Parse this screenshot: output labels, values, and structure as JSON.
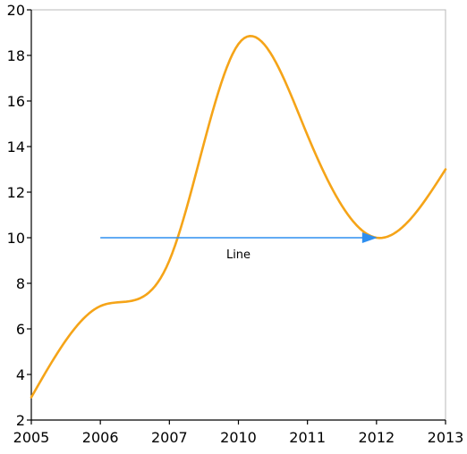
{
  "chart_data": {
    "type": "line",
    "x": [
      "2005",
      "2006",
      "2007",
      "2010",
      "2011",
      "2012",
      "2013"
    ],
    "series": [
      {
        "values": [
          3,
          7,
          9,
          18.5,
          14.5,
          10,
          13
        ],
        "color": "#F5A418"
      }
    ],
    "ylim": [
      2,
      20
    ],
    "yticks": [
      2,
      4,
      6,
      8,
      10,
      12,
      14,
      16,
      18,
      20
    ],
    "xlabel": "",
    "ylabel": "",
    "title": "",
    "grid": false,
    "smooth": true,
    "annotations": [
      {
        "type": "arrow",
        "label": "Line",
        "x_start": "2006",
        "x_end": "2012",
        "y": 10,
        "color": "#2E8FF0"
      }
    ]
  }
}
